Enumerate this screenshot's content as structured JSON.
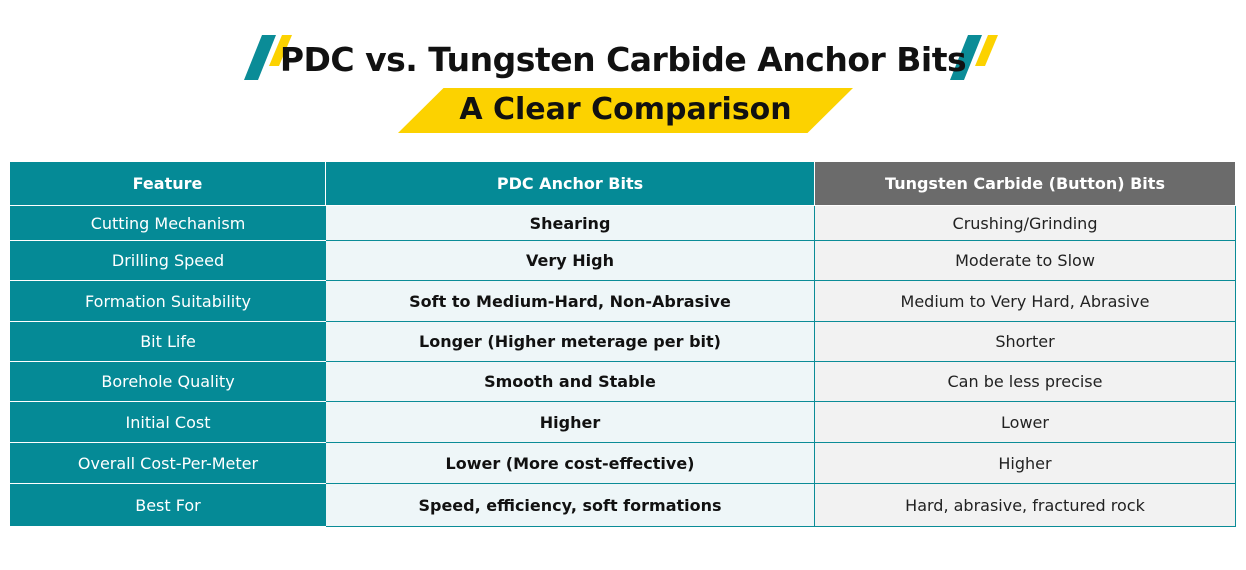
{
  "header": {
    "title": "PDC vs. Tungsten Carbide Anchor Bits",
    "subtitle": "A Clear Comparison"
  },
  "table": {
    "columns": [
      "Feature",
      "PDC Anchor Bits",
      "Tungsten Carbide (Button) Bits"
    ],
    "rows": [
      [
        "Cutting Mechanism",
        "Shearing",
        "Crushing/Grinding"
      ],
      [
        "Drilling Speed",
        "Very High",
        "Moderate to Slow"
      ],
      [
        "Formation Suitability",
        "Soft to Medium-Hard, Non-Abrasive",
        "Medium to Very Hard, Abrasive"
      ],
      [
        "Bit Life",
        "Longer (Higher meterage per bit)",
        "Shorter"
      ],
      [
        "Borehole Quality",
        "Smooth and Stable",
        "Can be less precise"
      ],
      [
        "Initial Cost",
        "Higher",
        "Lower"
      ],
      [
        "Overall Cost-Per-Meter",
        "Lower (More cost-effective)",
        "Higher"
      ],
      [
        "Best For",
        "Speed, efficiency, soft formations",
        "Hard, abrasive, fractured rock"
      ]
    ]
  }
}
